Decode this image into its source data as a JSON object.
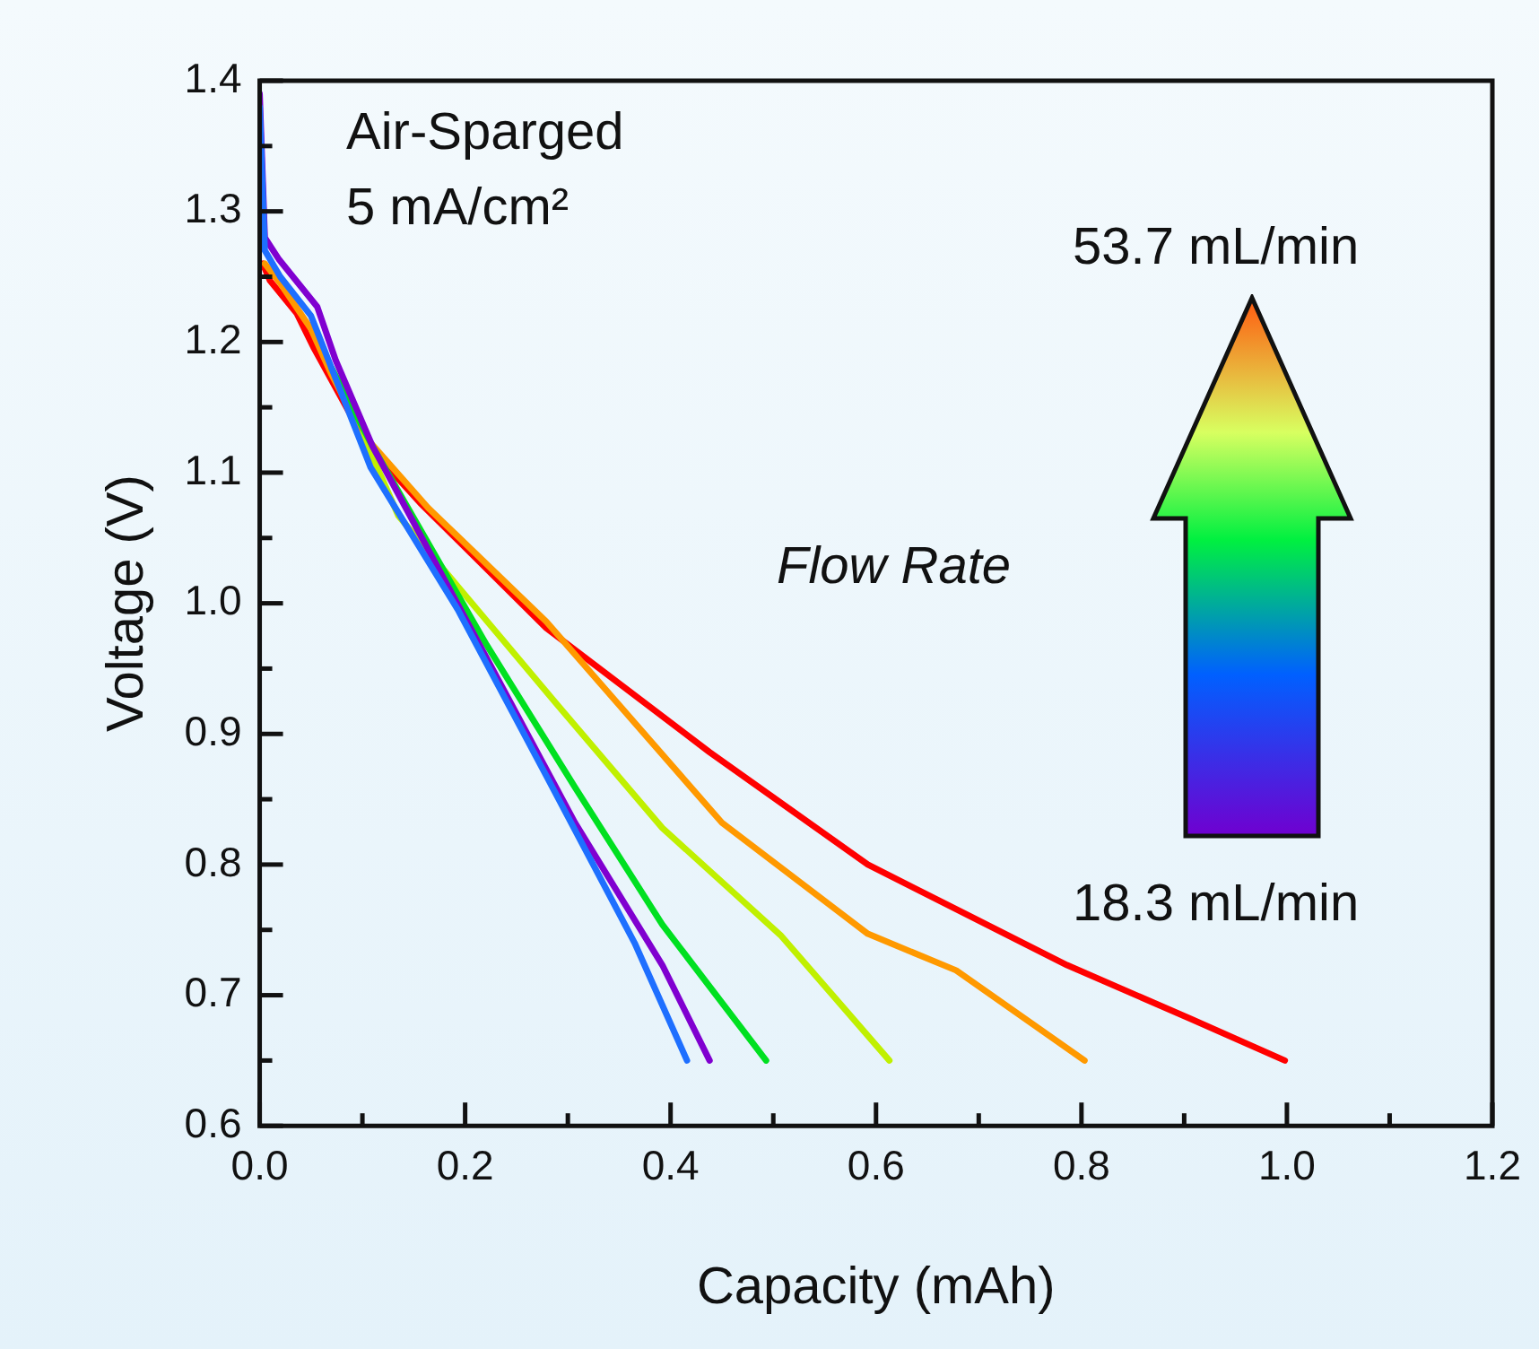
{
  "chart_data": {
    "type": "line",
    "xlabel": "Capacity (mAh)",
    "ylabel": "Voltage (V)",
    "xlim": [
      0,
      1.2
    ],
    "ylim": [
      0.6,
      1.4
    ],
    "xticks": [
      {
        "value": 0,
        "label": "0.0"
      },
      {
        "value": 0.1,
        "label": null
      },
      {
        "value": 0.2,
        "label": "0.2"
      },
      {
        "value": 0.3,
        "label": null
      },
      {
        "value": 0.4,
        "label": "0.4"
      },
      {
        "value": 0.5,
        "label": null
      },
      {
        "value": 0.6,
        "label": "0.6"
      },
      {
        "value": 0.7,
        "label": null
      },
      {
        "value": 0.8,
        "label": "0.8"
      },
      {
        "value": 0.9,
        "label": null
      },
      {
        "value": 1,
        "label": "1.0"
      },
      {
        "value": 1.1,
        "label": null
      },
      {
        "value": 1.2,
        "label": "1.2"
      }
    ],
    "yticks": [
      0.6,
      {
        "value": 0.65,
        "label": null
      },
      0.7,
      {
        "value": 0.75,
        "label": null
      },
      0.8,
      {
        "value": 0.85,
        "label": null
      },
      0.9,
      {
        "value": 0.95,
        "label": null
      },
      {
        "value": 1,
        "label": "1.0"
      },
      {
        "value": 1.05,
        "label": null
      },
      1.1,
      {
        "value": 1.15,
        "label": null
      },
      1.2,
      {
        "value": 1.25,
        "label": null
      },
      1.3,
      {
        "value": 1.35,
        "label": null
      },
      1.4
    ],
    "grid": false,
    "legend": false,
    "marker": "none",
    "line_style": "solid",
    "series": [
      {
        "color": "#1e6fff",
        "x": [
          0,
          0.005,
          0.02,
          0.05,
          0.07,
          0.108,
          0.193,
          0.279,
          0.365,
          0.416
        ],
        "values": [
          1.38,
          1.27,
          1.25,
          1.22,
          1.18,
          1.104,
          0.995,
          0.868,
          0.74,
          0.65
        ]
      },
      {
        "color": "#8000d0",
        "x": [
          0,
          0.005,
          0.019,
          0.056,
          0.074,
          0.11,
          0.221,
          0.307,
          0.392,
          0.438
        ],
        "values": [
          1.39,
          1.28,
          1.263,
          1.227,
          1.186,
          1.12,
          0.958,
          0.832,
          0.723,
          0.65
        ]
      },
      {
        "color": "#00e020",
        "x": [
          0.07,
          0.11,
          0.221,
          0.307,
          0.392,
          0.493
        ],
        "values": [
          1.18,
          1.12,
          0.968,
          0.859,
          0.754,
          0.65
        ]
      },
      {
        "color": "#c0f000",
        "x": [
          0.1,
          0.135,
          0.289,
          0.392,
          0.507,
          0.613
        ],
        "values": [
          1.13,
          1.067,
          0.923,
          0.828,
          0.746,
          0.65
        ]
      },
      {
        "color": "#ff9900",
        "x": [
          null,
          0.005,
          0.02,
          0.05,
          0.07,
          0.1,
          0.164,
          0.279,
          0.45,
          0.592,
          0.678,
          0.803
        ],
        "values": [
          null,
          1.26,
          1.245,
          1.21,
          1.175,
          1.13,
          1.073,
          0.986,
          0.832,
          0.747,
          0.719,
          0.65
        ]
      },
      {
        "color": "#ff0000",
        "x": [
          null,
          0.003,
          0.01,
          0.036,
          0.053,
          0.104,
          0.156,
          0.279,
          0.438,
          0.592,
          0.786,
          0.906,
          0.998
        ],
        "values": [
          null,
          1.26,
          1.247,
          1.222,
          1.195,
          1.122,
          1.077,
          0.981,
          0.886,
          0.8,
          0.723,
          0.682,
          0.65
        ]
      }
    ],
    "annotations": [
      "Air-Sparged",
      "5 mA/cm²",
      "53.7 mL/min",
      "Flow Rate",
      "18.3 mL/min"
    ]
  }
}
